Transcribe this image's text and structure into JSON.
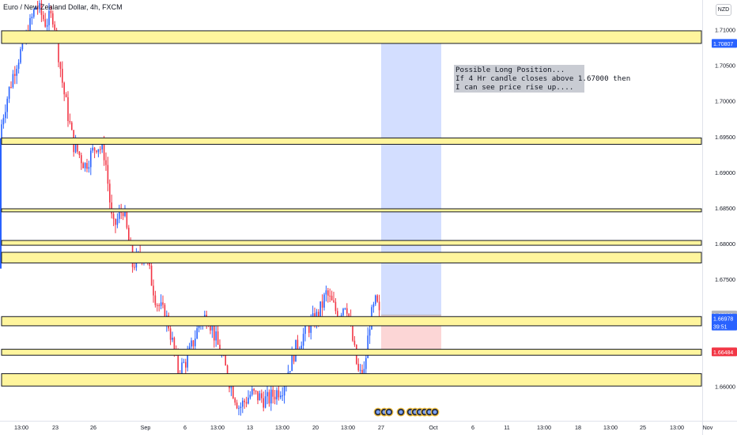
{
  "header": {
    "symbol_title": "Euro / New Zealand Dollar, 4h, FXCM",
    "currency_badge": "NZD"
  },
  "annotation": {
    "lines": [
      "Possible Long Position...",
      "If 4 Hr candle closes above 1.67000 then",
      "I can see price rise up...."
    ]
  },
  "chart_data": {
    "type": "candlestick",
    "symbol": "EURNZD",
    "timeframe": "4h",
    "y_axis": {
      "range": [
        1.5925,
        1.7145
      ],
      "ticks": [
        "1.71000",
        "1.70500",
        "1.70000",
        "1.69500",
        "1.69000",
        "1.68500",
        "1.68000",
        "1.67500",
        "1.67000",
        "1.66500",
        "1.66000"
      ]
    },
    "x_axis": {
      "ticks": [
        "13:00",
        "23",
        "26",
        "Sep",
        "6",
        "13:00",
        "13",
        "13:00",
        "20",
        "13:00",
        "27",
        "Oct",
        "6",
        "11",
        "13:00",
        "18",
        "13:00",
        "25",
        "13:00",
        "Nov"
      ]
    },
    "price_labels": [
      {
        "value": "1.70807",
        "color": "#2962ff"
      },
      {
        "value": "1.67001",
        "color": "#b2b5be"
      },
      {
        "value": "1.66978",
        "color": "#2962ff"
      },
      {
        "value": "39:51",
        "color": "#2962ff"
      },
      {
        "value": "1.66484",
        "color": "#f23645"
      }
    ],
    "zones": [
      {
        "low": 1.70807,
        "high": 1.70984
      },
      {
        "low": 1.69393,
        "high": 1.69482
      },
      {
        "low": 1.68446,
        "high": 1.68489
      },
      {
        "low": 1.67978,
        "high": 1.68045
      },
      {
        "low": 1.6773,
        "high": 1.67879
      },
      {
        "low": 1.66849,
        "high": 1.66978
      },
      {
        "low": 1.66436,
        "high": 1.6652
      },
      {
        "low": 1.66004,
        "high": 1.66178
      }
    ],
    "long_position": {
      "entry": 1.67001,
      "target": 1.70807,
      "stop": 1.66484
    },
    "colors": {
      "up": "#2962ff",
      "down": "#f23645",
      "zone_fill": "#fff59d",
      "target_fill": "#d1dcff",
      "stop_fill": "#fcd6d6"
    }
  }
}
